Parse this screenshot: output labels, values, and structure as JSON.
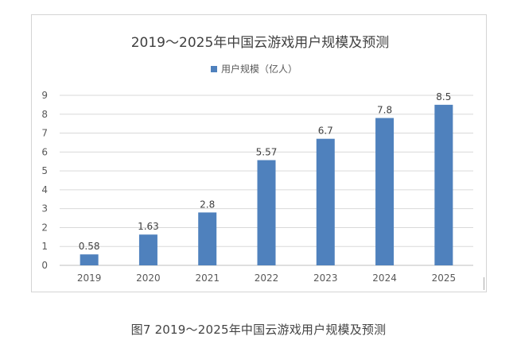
{
  "chart_data": {
    "type": "bar",
    "title": "2019～2025年中国云游戏用户规模及预测",
    "legend_label": "用户规模（亿人）",
    "legend_position": "top",
    "categories": [
      "2019",
      "2020",
      "2021",
      "2022",
      "2023",
      "2024",
      "2025"
    ],
    "series": [
      {
        "name": "用户规模（亿人）",
        "values": [
          0.58,
          1.63,
          2.8,
          5.57,
          6.7,
          7.8,
          8.5
        ]
      }
    ],
    "data_labels": [
      "0.58",
      "1.63",
      "2.8",
      "5.57",
      "6.7",
      "7.8",
      "8.5"
    ],
    "ylim": [
      0,
      9
    ],
    "yticks": [
      "0",
      "1",
      "2",
      "3",
      "4",
      "5",
      "6",
      "7",
      "8",
      "9"
    ],
    "grid": true,
    "bar_color": "#4f81bd"
  },
  "caption": "图7  2019～2025年中国云游戏用户规模及预测"
}
